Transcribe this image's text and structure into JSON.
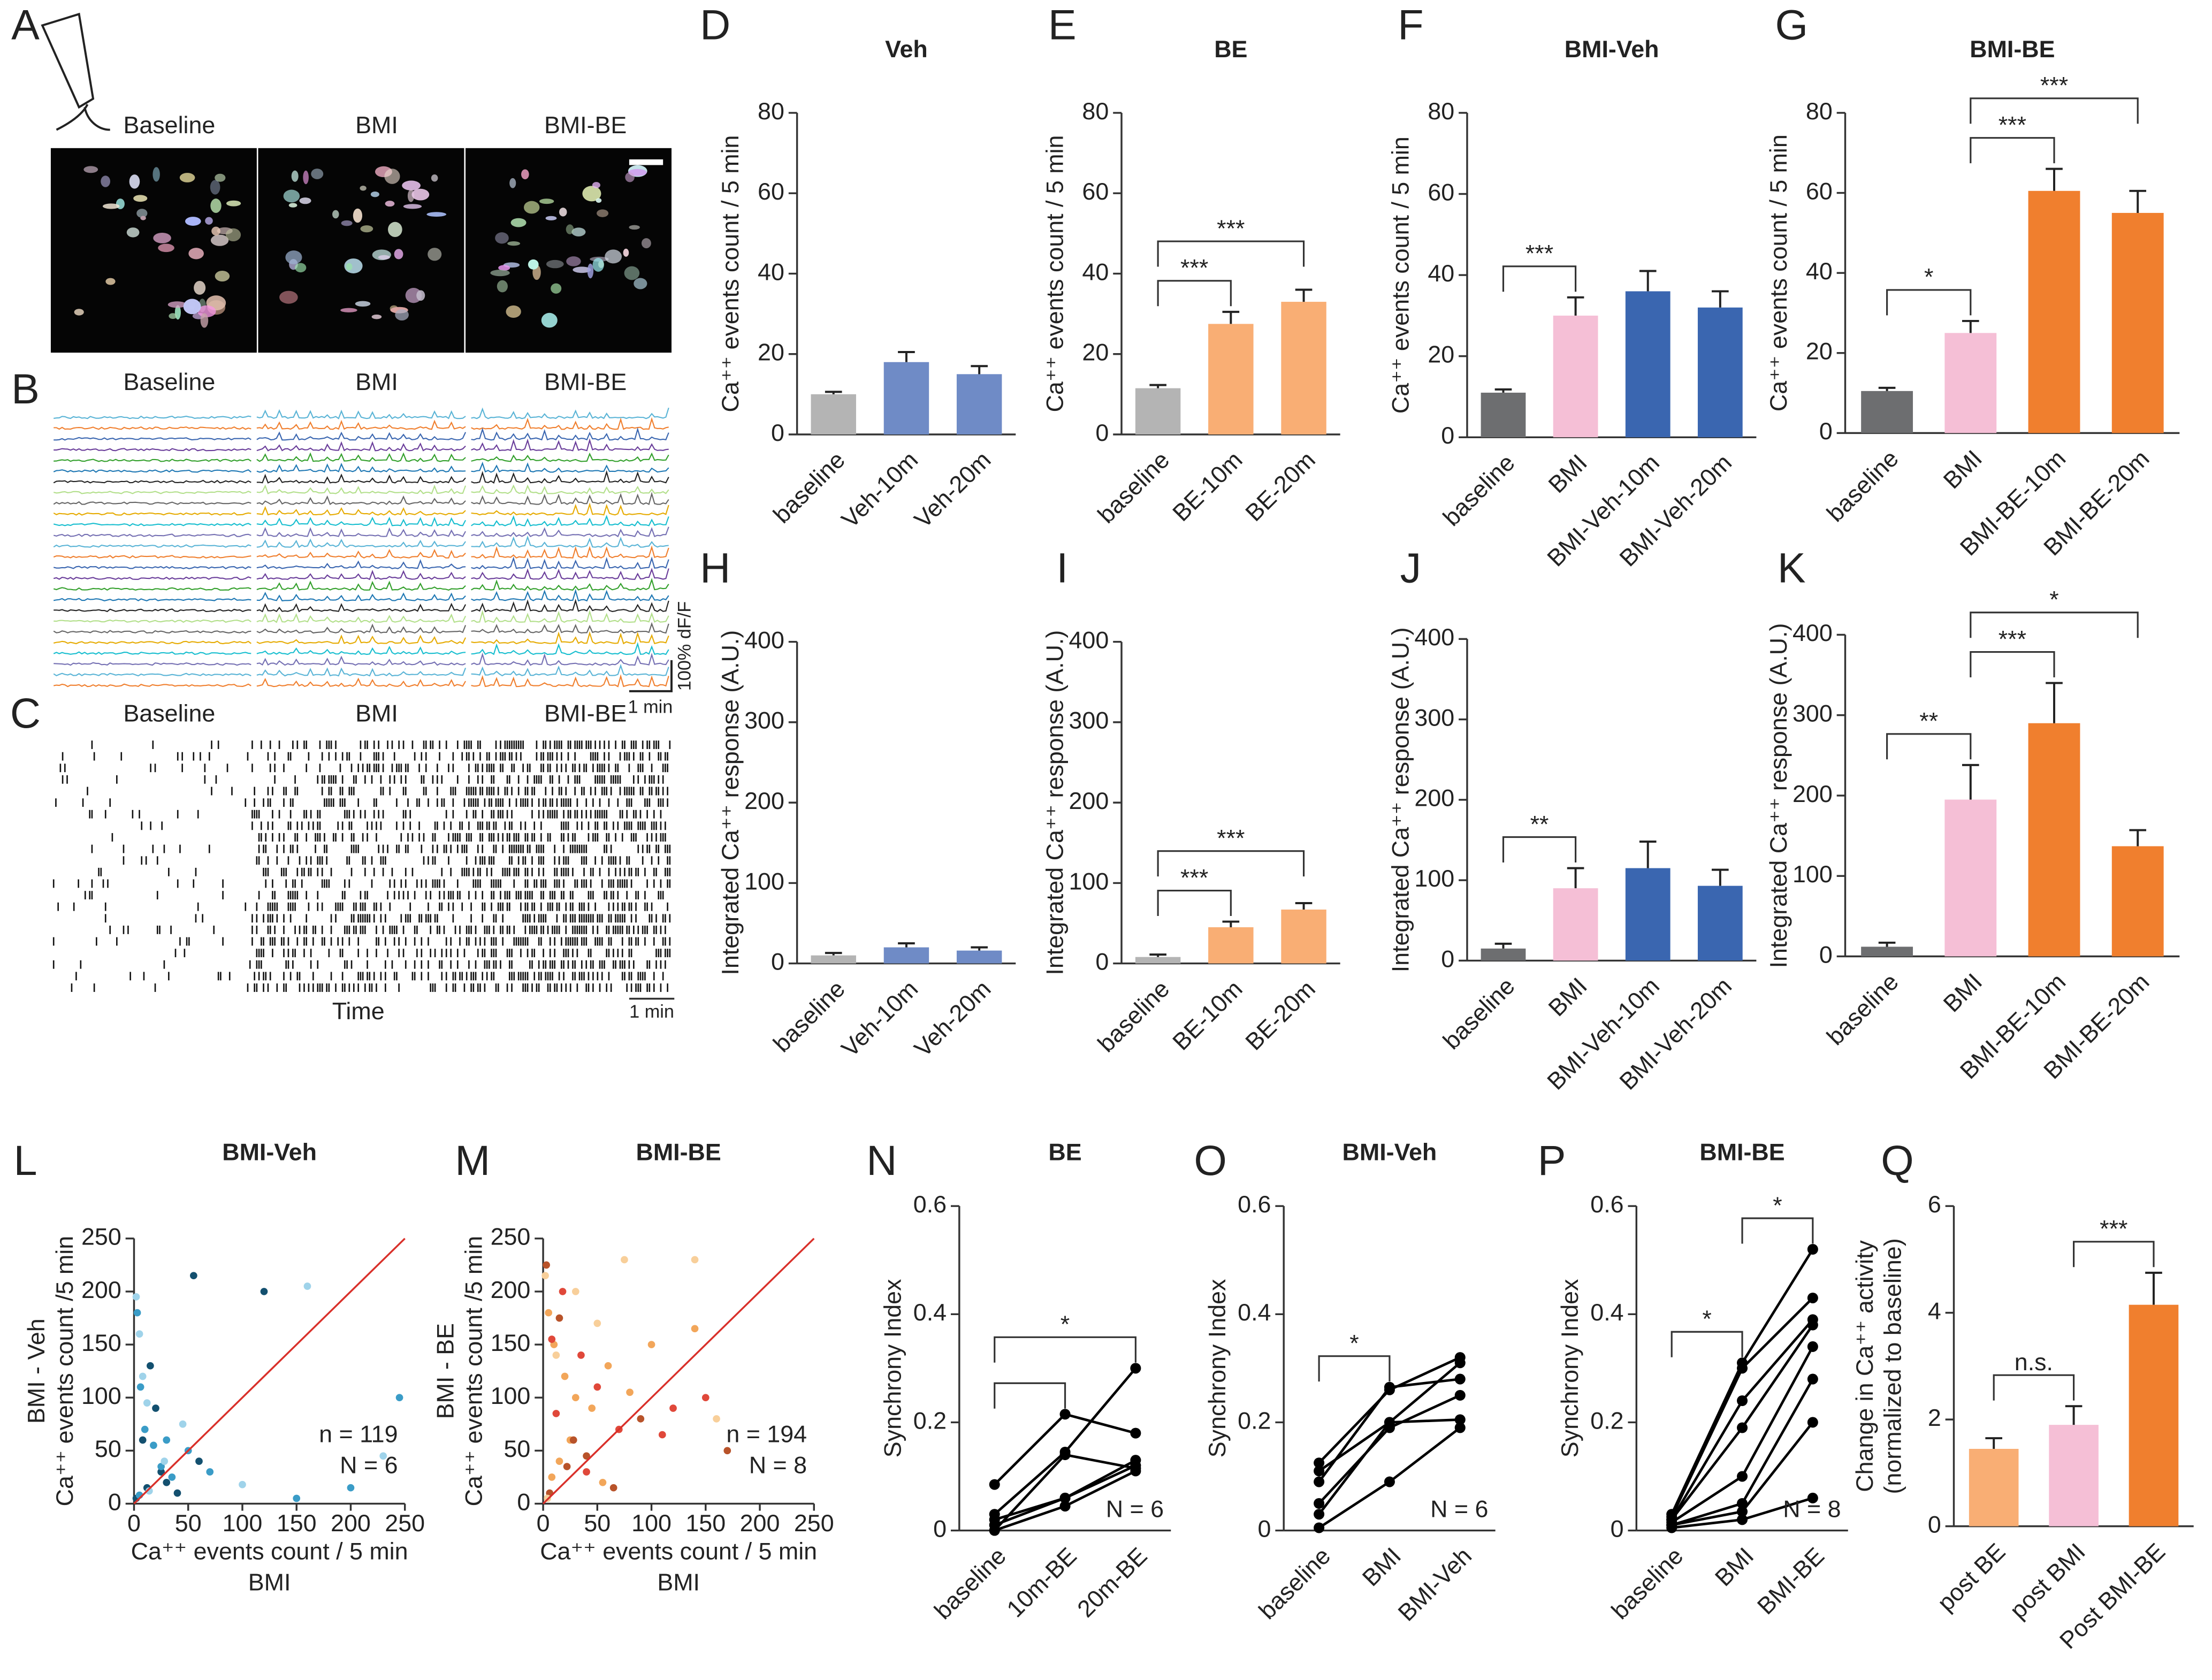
{
  "figures": [
    {
      "panel": "A",
      "labels": [
        "Baseline",
        "BMI",
        "BMI-BE"
      ]
    },
    {
      "panel": "B",
      "labels": [
        "Baseline",
        "BMI",
        "BMI-BE"
      ],
      "scale_y": "100% dF/F",
      "scale_x": "1 min"
    },
    {
      "panel": "C",
      "labels": [
        "Baseline",
        "BMI",
        "BMI-BE"
      ],
      "xlabel": "Time",
      "scale_x": "1 min"
    }
  ],
  "chart_data": [
    {
      "type": "bar",
      "panel": "D",
      "title": "Veh",
      "ylabel": [
        "Ca⁺⁺ events count / 5 min"
      ],
      "categories": [
        "baseline",
        "Veh-10m",
        "Veh-20m"
      ],
      "values": [
        10,
        18,
        15
      ],
      "errors": [
        0.6,
        2.5,
        2
      ],
      "colors": [
        "#b4b4b4",
        "#6f8bc6",
        "#6f8bc6"
      ],
      "ylim": [
        0,
        80
      ],
      "yticks": [
        0,
        20,
        40,
        60,
        80
      ],
      "significance": []
    },
    {
      "type": "bar",
      "panel": "E",
      "title": "BE",
      "ylabel": [
        "Ca⁺⁺ events count / 5 min"
      ],
      "categories": [
        "baseline",
        "BE-10m",
        "BE-20m"
      ],
      "values": [
        11.5,
        27.5,
        33
      ],
      "errors": [
        0.8,
        3,
        3
      ],
      "colors": [
        "#b4b4b4",
        "#f9ae74",
        "#f9ae74"
      ],
      "ylim": [
        0,
        80
      ],
      "yticks": [
        0,
        20,
        40,
        60,
        80
      ],
      "significance": [
        {
          "from": 0,
          "to": 1,
          "label": "***"
        },
        {
          "from": 0,
          "to": 2,
          "label": "***"
        }
      ]
    },
    {
      "type": "bar",
      "panel": "F",
      "title": "BMI-Veh",
      "ylabel": [
        "Ca⁺⁺ events count / 5 min"
      ],
      "categories": [
        "baseline",
        "BMI",
        "BMI-Veh-10m",
        "BMI-Veh-20m"
      ],
      "values": [
        11,
        30,
        36,
        32
      ],
      "errors": [
        0.8,
        4.5,
        5,
        4
      ],
      "colors": [
        "#6d6e70",
        "#f5bfd6",
        "#3a66b0",
        "#3a66b0"
      ],
      "ylim": [
        0,
        80
      ],
      "yticks": [
        0,
        20,
        40,
        60,
        80
      ],
      "significance": [
        {
          "from": 0,
          "to": 1,
          "label": "***"
        }
      ]
    },
    {
      "type": "bar",
      "panel": "G",
      "title": "BMI-BE",
      "ylabel": [
        "Ca⁺⁺ events count / 5 min"
      ],
      "categories": [
        "baseline",
        "BMI",
        "BMI-BE-10m",
        "BMI-BE-20m"
      ],
      "values": [
        10.5,
        25,
        60.5,
        55
      ],
      "errors": [
        0.8,
        3,
        5.5,
        5.5
      ],
      "colors": [
        "#6d6e70",
        "#f5bfd6",
        "#f07f2e",
        "#f07f2e"
      ],
      "ylim": [
        0,
        80
      ],
      "yticks": [
        0,
        20,
        40,
        60,
        80
      ],
      "significance": [
        {
          "from": 0,
          "to": 1,
          "label": "*"
        },
        {
          "from": 1,
          "to": 2,
          "label": "***"
        },
        {
          "from": 1,
          "to": 3,
          "label": "***"
        }
      ]
    },
    {
      "type": "bar",
      "panel": "H",
      "ylabel": [
        "Integrated  Ca⁺⁺ response (A.U.)"
      ],
      "categories": [
        "baseline",
        "Veh-10m",
        "Veh-20m"
      ],
      "values": [
        10,
        20,
        16
      ],
      "errors": [
        3,
        5,
        4
      ],
      "colors": [
        "#b4b4b4",
        "#6f8bc6",
        "#6f8bc6"
      ],
      "ylim": [
        0,
        400
      ],
      "yticks": [
        0,
        100,
        200,
        300,
        400
      ],
      "significance": []
    },
    {
      "type": "bar",
      "panel": "I",
      "ylabel": [
        "Integrated  Ca⁺⁺ response (A.U.)"
      ],
      "categories": [
        "baseline",
        "BE-10m",
        "BE-20m"
      ],
      "values": [
        8,
        45,
        67
      ],
      "errors": [
        3,
        7,
        8
      ],
      "colors": [
        "#b4b4b4",
        "#f9ae74",
        "#f9ae74"
      ],
      "ylim": [
        0,
        400
      ],
      "yticks": [
        0,
        100,
        200,
        300,
        400
      ],
      "significance": [
        {
          "from": 0,
          "to": 1,
          "label": "***"
        },
        {
          "from": 0,
          "to": 2,
          "label": "***"
        }
      ]
    },
    {
      "type": "bar",
      "panel": "J",
      "ylabel": [
        "Integrated  Ca⁺⁺ response (A.U.)"
      ],
      "categories": [
        "baseline",
        "BMI",
        "BMI-Veh-10m",
        "BMI-Veh-20m"
      ],
      "values": [
        15,
        90,
        115,
        93
      ],
      "errors": [
        6,
        25,
        33,
        20
      ],
      "colors": [
        "#6d6e70",
        "#f5bfd6",
        "#3a66b0",
        "#3a66b0"
      ],
      "ylim": [
        0,
        400
      ],
      "yticks": [
        0,
        100,
        200,
        300,
        400
      ],
      "significance": [
        {
          "from": 0,
          "to": 1,
          "label": "**"
        }
      ]
    },
    {
      "type": "bar",
      "panel": "K",
      "ylabel": [
        "Integrated  Ca⁺⁺ response (A.U.)"
      ],
      "categories": [
        "baseline",
        "BMI",
        "BMI-BE-10m",
        "BMI-BE-20m"
      ],
      "values": [
        12,
        195,
        290,
        137
      ],
      "errors": [
        5,
        43,
        50,
        20
      ],
      "colors": [
        "#6d6e70",
        "#f5bfd6",
        "#f07f2e",
        "#f07f2e"
      ],
      "ylim": [
        0,
        400
      ],
      "yticks": [
        0,
        100,
        200,
        300,
        400
      ],
      "significance": [
        {
          "from": 0,
          "to": 1,
          "label": "**"
        },
        {
          "from": 1,
          "to": 2,
          "label": "***"
        },
        {
          "from": 1,
          "to": 3,
          "label": "*"
        }
      ]
    },
    {
      "type": "scatter",
      "panel": "L",
      "title": "BMI-Veh",
      "ylabel": [
        "BMI - Veh",
        "Ca⁺⁺ events count /5 min"
      ],
      "xlabel": [
        "Ca⁺⁺ events count / 5 min",
        "BMI"
      ],
      "xlim": [
        0,
        250
      ],
      "ylim": [
        0,
        250
      ],
      "xticks": [
        0,
        50,
        100,
        150,
        200,
        250
      ],
      "yticks": [
        0,
        50,
        100,
        150,
        200,
        250
      ],
      "diagonal_color": "#d9302a",
      "annotations": [
        "n =  119",
        "N = 6"
      ],
      "series": [
        {
          "color": "#13506f",
          "x": [
            15,
            20,
            55,
            60,
            120,
            30,
            40,
            8,
            25,
            2,
            12
          ],
          "y": [
            130,
            90,
            215,
            40,
            200,
            20,
            10,
            60,
            30,
            5,
            15
          ]
        },
        {
          "color": "#3a9cc7",
          "x": [
            3,
            6,
            10,
            18,
            25,
            35,
            50,
            70,
            150,
            200,
            245,
            5,
            30
          ],
          "y": [
            180,
            110,
            70,
            55,
            35,
            25,
            50,
            30,
            5,
            15,
            100,
            8,
            60
          ]
        },
        {
          "color": "#9fd3ea",
          "x": [
            2,
            5,
            8,
            12,
            45,
            100,
            230,
            14,
            28,
            160
          ],
          "y": [
            195,
            160,
            120,
            95,
            75,
            18,
            45,
            12,
            40,
            205
          ]
        }
      ]
    },
    {
      "type": "scatter",
      "panel": "M",
      "title": "BMI-BE",
      "ylabel": [
        "BMI - BE",
        "Ca⁺⁺ events count /5 min"
      ],
      "xlabel": [
        "Ca⁺⁺ events count / 5 min",
        "BMI"
      ],
      "xlim": [
        0,
        250
      ],
      "ylim": [
        0,
        250
      ],
      "xticks": [
        0,
        50,
        100,
        150,
        200,
        250
      ],
      "yticks": [
        0,
        50,
        100,
        150,
        200,
        250
      ],
      "diagonal_color": "#d9302a",
      "annotations": [
        "n =  194",
        "N = 8"
      ],
      "series": [
        {
          "color": "#f2a65a",
          "x": [
            5,
            10,
            20,
            30,
            45,
            60,
            80,
            100,
            140,
            25,
            15,
            8,
            55
          ],
          "y": [
            180,
            150,
            120,
            100,
            90,
            130,
            105,
            150,
            165,
            60,
            40,
            25,
            20
          ]
        },
        {
          "color": "#e0483a",
          "x": [
            8,
            18,
            35,
            50,
            70,
            110,
            120,
            150,
            12,
            40
          ],
          "y": [
            155,
            200,
            140,
            110,
            70,
            65,
            90,
            100,
            85,
            30
          ]
        },
        {
          "color": "#b8532a",
          "x": [
            3,
            15,
            28,
            40,
            65,
            90,
            170,
            6,
            22
          ],
          "y": [
            225,
            175,
            60,
            45,
            15,
            80,
            50,
            10,
            35
          ]
        },
        {
          "color": "#f8cf9a",
          "x": [
            2,
            12,
            30,
            75,
            140,
            160,
            50,
            4
          ],
          "y": [
            215,
            140,
            200,
            230,
            230,
            80,
            170,
            5
          ]
        }
      ]
    },
    {
      "type": "line",
      "panel": "N",
      "title": "BE",
      "ylabel": [
        "Synchrony Index"
      ],
      "categories": [
        "baseline",
        "10m-BE",
        "20m-BE"
      ],
      "ylim": [
        0,
        0.6
      ],
      "yticks": [
        0,
        0.2,
        0.4,
        0.6
      ],
      "color": "#000000",
      "annotations": [
        "N = 6"
      ],
      "significance": [
        {
          "from": 0,
          "to": 1
        },
        {
          "from": 0,
          "to": 2,
          "label": "*"
        }
      ],
      "series": [
        {
          "values": [
            0.085,
            0.215,
            0.18
          ]
        },
        {
          "values": [
            0.03,
            0.145,
            0.3
          ]
        },
        {
          "values": [
            0.02,
            0.06,
            0.13
          ]
        },
        {
          "values": [
            0.01,
            0.06,
            0.12
          ]
        },
        {
          "values": [
            0.0,
            0.045,
            0.11
          ]
        },
        {
          "values": [
            0.0,
            0.14,
            0.115
          ]
        }
      ]
    },
    {
      "type": "line",
      "panel": "O",
      "title": "BMI-Veh",
      "ylabel": [
        "Synchrony Index"
      ],
      "categories": [
        "baseline",
        "BMI",
        "BMI-Veh"
      ],
      "ylim": [
        0,
        0.6
      ],
      "yticks": [
        0,
        0.2,
        0.4,
        0.6
      ],
      "color": "#000000",
      "annotations": [
        "N = 6"
      ],
      "significance": [
        {
          "from": 0,
          "to": 1,
          "label": "*"
        }
      ],
      "series": [
        {
          "values": [
            0.125,
            0.26,
            0.32
          ]
        },
        {
          "values": [
            0.11,
            0.2,
            0.31
          ]
        },
        {
          "values": [
            0.09,
            0.265,
            0.28
          ]
        },
        {
          "values": [
            0.05,
            0.19,
            0.25
          ]
        },
        {
          "values": [
            0.03,
            0.2,
            0.205
          ]
        },
        {
          "values": [
            0.005,
            0.09,
            0.19
          ]
        }
      ]
    },
    {
      "type": "line",
      "panel": "P",
      "title": "BMI-BE",
      "ylabel": [
        "Synchrony Index"
      ],
      "categories": [
        "baseline",
        "BMI",
        "BMI-BE"
      ],
      "ylim": [
        0,
        0.6
      ],
      "yticks": [
        0,
        0.2,
        0.4,
        0.6
      ],
      "color": "#000000",
      "annotations": [
        "N = 8"
      ],
      "significance": [
        {
          "from": 0,
          "to": 1,
          "label": "*"
        },
        {
          "from": 1,
          "to": 2,
          "label": "*"
        }
      ],
      "series": [
        {
          "values": [
            0.03,
            0.31,
            0.52
          ]
        },
        {
          "values": [
            0.025,
            0.3,
            0.43
          ]
        },
        {
          "values": [
            0.02,
            0.24,
            0.39
          ]
        },
        {
          "values": [
            0.02,
            0.19,
            0.38
          ]
        },
        {
          "values": [
            0.015,
            0.1,
            0.34
          ]
        },
        {
          "values": [
            0.01,
            0.05,
            0.28
          ]
        },
        {
          "values": [
            0.01,
            0.035,
            0.2
          ]
        },
        {
          "values": [
            0.005,
            0.02,
            0.06
          ]
        }
      ]
    },
    {
      "type": "bar",
      "panel": "Q",
      "ylabel": [
        "Change in Ca⁺⁺ activity",
        "(normalized to baseline)"
      ],
      "categories": [
        "post BE",
        "post BMI",
        "Post BMI-BE"
      ],
      "values": [
        1.45,
        1.9,
        4.15
      ],
      "errors": [
        0.2,
        0.35,
        0.6
      ],
      "colors": [
        "#f9ae74",
        "#f5bfd6",
        "#f07f2e"
      ],
      "ylim": [
        0,
        6
      ],
      "yticks": [
        0,
        2,
        4,
        6
      ],
      "significance": [
        {
          "from": 0,
          "to": 1,
          "label": "n.s."
        },
        {
          "from": 1,
          "to": 2,
          "label": "***"
        }
      ]
    }
  ]
}
